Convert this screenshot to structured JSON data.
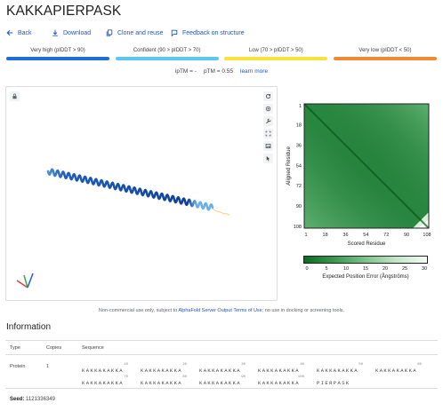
{
  "title": "KAKKAPIERPASK",
  "actions": [
    {
      "label": "Back",
      "icon": "arrow-left-icon"
    },
    {
      "label": "Download",
      "icon": "download-icon"
    },
    {
      "label": "Clone and reuse",
      "icon": "copy-icon"
    },
    {
      "label": "Feedback on structure",
      "icon": "feedback-icon"
    }
  ],
  "plddt_legend": [
    {
      "label": "Very high (pIDDT > 90)",
      "color": "#1f6fd8"
    },
    {
      "label": "Confident (90 > pIDDT > 70)",
      "color": "#5cc8f0"
    },
    {
      "label": "Low (70 > pIDDT > 50)",
      "color": "#f7e33a"
    },
    {
      "label": "Very low (pIDDT < 50)",
      "color": "#f08a33"
    }
  ],
  "metrics": {
    "iptm": "ipTM = -",
    "ptm": "pTM = 0.55",
    "learn_more": "learn more"
  },
  "viewer": {
    "lock_icon": "lock-icon",
    "tools": [
      "rotate-icon",
      "center-icon",
      "wrench-icon",
      "fullscreen-icon",
      "image-icon",
      "pointer-icon"
    ]
  },
  "pae": {
    "xlabel": "Scored Residue",
    "ylabel": "Aligned Residue",
    "ticks": [
      "1",
      "18",
      "36",
      "54",
      "72",
      "90",
      "108"
    ],
    "colorbar_ticks": [
      "0",
      "5",
      "10",
      "15",
      "20",
      "25",
      "30"
    ],
    "colorbar_label": "Expected Position Error (Ångströms)"
  },
  "notice": {
    "before": "Non-commercial use only, subject to ",
    "link": "AlphaFold Server Output Terms of Use",
    "after": "; no use in docking or screening tools."
  },
  "info": {
    "title": "Information",
    "headers": {
      "type": "Type",
      "copies": "Copies",
      "sequence": "Sequence"
    },
    "row": {
      "type": "Protein",
      "copies": "1",
      "sequence_line1": [
        {
          "text": "KAKKAKAKKA",
          "num": "10"
        },
        {
          "text": "KAKKAKAKKA",
          "num": "20"
        },
        {
          "text": "KAKKAKAKKA",
          "num": "30"
        },
        {
          "text": "KAKKAKAKKA",
          "num": "40"
        },
        {
          "text": "KAKKAKAKKA",
          "num": "50"
        },
        {
          "text": "KAKKAKAKKA",
          "num": "60"
        }
      ],
      "sequence_line2": [
        {
          "text": "KAKKAKAKKA",
          "num": "70"
        },
        {
          "text": "KAKKAKAKKA",
          "num": "80"
        },
        {
          "text": "KAKKAKAKKA",
          "num": "90"
        },
        {
          "text": "KAKKAKAKKA",
          "num": "100"
        },
        {
          "text": "PIERPASK",
          "num": ""
        }
      ]
    },
    "seed_label": "Seed:",
    "seed_value": "1121336349"
  }
}
